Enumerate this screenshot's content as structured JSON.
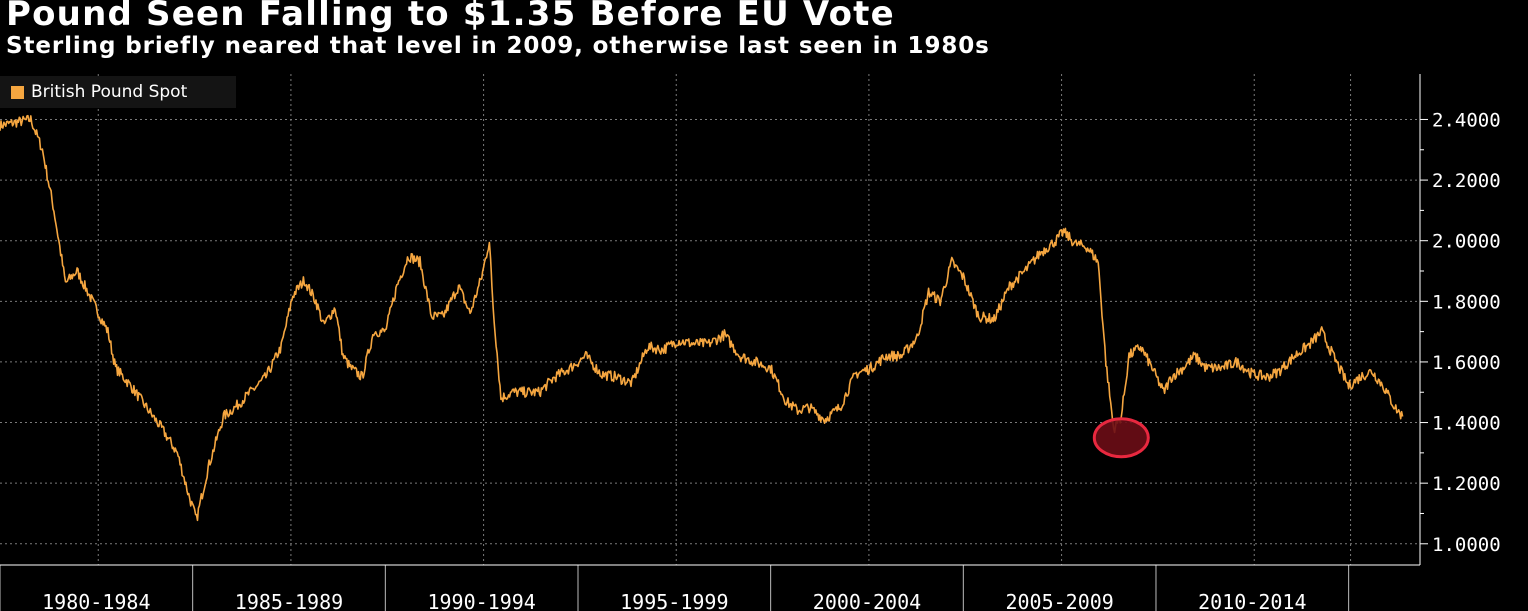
{
  "chart_data": {
    "type": "line",
    "title": "Pound Seen Falling to $1.35 Before EU Vote",
    "subtitle": "Sterling briefly neared that level in 2009, otherwise last seen in 1980s",
    "legend": {
      "label": "British Pound Spot",
      "placement": "top-left"
    },
    "series": [
      {
        "name": "British Pound Spot",
        "color": "#f5a640",
        "x": [
          1980.0,
          1980.8,
          1981.1,
          1981.4,
          1981.7,
          1982.0,
          1982.4,
          1982.8,
          1983.0,
          1983.4,
          1983.8,
          1984.2,
          1984.6,
          1984.9,
          1985.1,
          1985.4,
          1985.8,
          1986.1,
          1986.5,
          1986.9,
          1987.3,
          1987.6,
          1987.9,
          1988.2,
          1988.4,
          1988.7,
          1988.9,
          1989.1,
          1989.4,
          1989.7,
          1990.0,
          1990.3,
          1990.6,
          1990.9,
          1991.2,
          1991.5,
          1991.9,
          1992.2,
          1992.5,
          1992.7,
          1992.8,
          1993.0,
          1993.3,
          1993.7,
          1994.0,
          1994.4,
          1994.8,
          1995.2,
          1995.6,
          1996.0,
          1996.4,
          1996.8,
          1997.2,
          1997.6,
          1998.0,
          1998.4,
          1998.8,
          1999.2,
          1999.6,
          2000.0,
          2000.4,
          2000.7,
          2001.0,
          2001.4,
          2001.8,
          2002.2,
          2002.6,
          2003.0,
          2003.4,
          2003.8,
          2004.1,
          2004.4,
          2004.7,
          2005.0,
          2005.4,
          2005.8,
          2006.2,
          2006.6,
          2007.0,
          2007.4,
          2007.6,
          2007.9,
          2008.2,
          2008.5,
          2008.7,
          2008.9,
          2009.1,
          2009.3,
          2009.6,
          2009.9,
          2010.2,
          2010.4,
          2010.7,
          2011.0,
          2011.3,
          2011.7,
          2012.1,
          2012.5,
          2012.9,
          2013.2,
          2013.6,
          2014.0,
          2014.3,
          2014.6,
          2015.0,
          2015.3,
          2015.6,
          2015.9,
          2016.2,
          2016.4
        ],
        "values": [
          2.38,
          2.4,
          2.3,
          2.1,
          1.86,
          1.9,
          1.8,
          1.7,
          1.58,
          1.52,
          1.45,
          1.38,
          1.3,
          1.16,
          1.08,
          1.25,
          1.42,
          1.45,
          1.5,
          1.55,
          1.65,
          1.82,
          1.87,
          1.8,
          1.72,
          1.78,
          1.62,
          1.58,
          1.55,
          1.7,
          1.7,
          1.85,
          1.95,
          1.93,
          1.75,
          1.75,
          1.85,
          1.76,
          1.88,
          2.0,
          1.78,
          1.48,
          1.5,
          1.5,
          1.5,
          1.55,
          1.58,
          1.62,
          1.56,
          1.55,
          1.53,
          1.65,
          1.64,
          1.67,
          1.66,
          1.66,
          1.69,
          1.62,
          1.6,
          1.58,
          1.47,
          1.44,
          1.45,
          1.41,
          1.45,
          1.56,
          1.58,
          1.62,
          1.62,
          1.68,
          1.83,
          1.8,
          1.93,
          1.88,
          1.75,
          1.74,
          1.85,
          1.9,
          1.96,
          2.0,
          2.03,
          1.99,
          1.98,
          1.93,
          1.6,
          1.38,
          1.42,
          1.62,
          1.65,
          1.58,
          1.5,
          1.55,
          1.58,
          1.62,
          1.58,
          1.58,
          1.6,
          1.56,
          1.55,
          1.57,
          1.62,
          1.66,
          1.7,
          1.62,
          1.52,
          1.55,
          1.57,
          1.52,
          1.45,
          1.42
        ]
      }
    ],
    "y_axis": {
      "ticks": [
        "2.4000",
        "2.2000",
        "2.0000",
        "1.8000",
        "1.6000",
        "1.4000",
        "1.2000",
        "1.0000"
      ],
      "ylim": [
        0.93,
        2.55
      ],
      "side": "right"
    },
    "x_axis": {
      "xlim": [
        1980.0,
        2016.8
      ],
      "ticks": [
        {
          "label": "1980-1984",
          "start": 1980.0,
          "end": 1985.0
        },
        {
          "label": "1985-1989",
          "start": 1985.0,
          "end": 1990.0
        },
        {
          "label": "1990-1994",
          "start": 1990.0,
          "end": 1995.0
        },
        {
          "label": "1995-1999",
          "start": 1995.0,
          "end": 2000.0
        },
        {
          "label": "2000-2004",
          "start": 2000.0,
          "end": 2005.0
        },
        {
          "label": "2005-2009",
          "start": 2005.0,
          "end": 2010.0
        },
        {
          "label": "2010-2014",
          "start": 2010.0,
          "end": 2015.0
        }
      ]
    },
    "annotation": {
      "x": 2009.1,
      "y": 1.35,
      "shape": "circle",
      "fill": "#6b0d16",
      "stroke": "#e8283f"
    },
    "grid": true
  }
}
